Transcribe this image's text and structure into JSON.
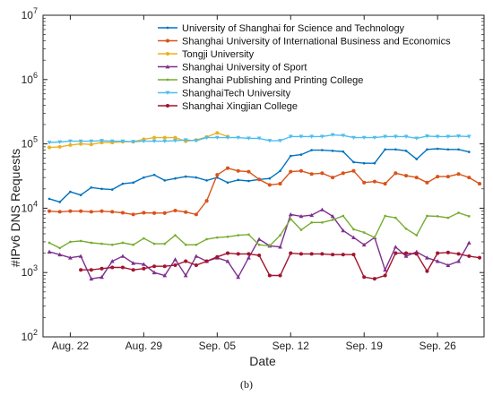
{
  "chart_data": {
    "type": "line",
    "xlabel": "Date",
    "ylabel": "#IPv6 DNS Requests",
    "caption": "(b)",
    "y_scale": "log",
    "ylim": [
      100,
      10000000
    ],
    "y_ticks": [
      {
        "value": 100,
        "base": "10",
        "exp": "2"
      },
      {
        "value": 1000,
        "base": "10",
        "exp": "3"
      },
      {
        "value": 10000,
        "base": "10",
        "exp": "4"
      },
      {
        "value": 100000,
        "base": "10",
        "exp": "5"
      },
      {
        "value": 1000000,
        "base": "10",
        "exp": "6"
      },
      {
        "value": 10000000,
        "base": "10",
        "exp": "7"
      }
    ],
    "x": [
      "Aug. 20",
      "Aug. 21",
      "Aug. 22",
      "Aug. 23",
      "Aug. 24",
      "Aug. 25",
      "Aug. 26",
      "Aug. 27",
      "Aug. 28",
      "Aug. 29",
      "Aug. 30",
      "Aug. 31",
      "Sep. 01",
      "Sep. 02",
      "Sep. 03",
      "Sep. 04",
      "Sep. 05",
      "Sep. 06",
      "Sep. 07",
      "Sep. 08",
      "Sep. 09",
      "Sep. 10",
      "Sep. 11",
      "Sep. 12",
      "Sep. 13",
      "Sep. 14",
      "Sep. 15",
      "Sep. 16",
      "Sep. 17",
      "Sep. 18",
      "Sep. 19",
      "Sep. 20",
      "Sep. 21",
      "Sep. 22",
      "Sep. 23",
      "Sep. 24",
      "Sep. 25",
      "Sep. 26",
      "Sep. 27",
      "Sep. 28",
      "Sep. 29",
      "Sep. 30"
    ],
    "x_ticks": [
      "Aug. 22",
      "Aug. 29",
      "Sep. 05",
      "Sep. 12",
      "Sep. 19",
      "Sep. 26"
    ],
    "grid": false,
    "legend_position": "top-right",
    "series": [
      {
        "name": "University of Shanghai for Science and Technology",
        "color": "#0072BD",
        "marker": "dot",
        "values": [
          14000,
          12500,
          18000,
          16000,
          21000,
          20000,
          19500,
          24000,
          25000,
          30000,
          33000,
          27000,
          29000,
          31000,
          30000,
          27000,
          30000,
          25000,
          27500,
          26500,
          28000,
          29000,
          38000,
          65000,
          68000,
          80000,
          80000,
          78000,
          76000,
          52000,
          50000,
          50000,
          82000,
          82000,
          78000,
          58000,
          82000,
          84000,
          82000,
          82000,
          75000,
          null
        ]
      },
      {
        "name": "Shanghai University of International Business and Economics",
        "color": "#D95319",
        "marker": "circle",
        "values": [
          9000,
          8800,
          9000,
          9000,
          8800,
          9000,
          8800,
          8500,
          8000,
          8500,
          8400,
          8400,
          9200,
          8700,
          8000,
          13000,
          33000,
          42000,
          38000,
          37000,
          28000,
          23000,
          24000,
          37000,
          38000,
          34000,
          35000,
          30000,
          35000,
          38000,
          25000,
          26000,
          24000,
          35000,
          32000,
          30000,
          25000,
          31000,
          31000,
          34000,
          30000,
          24000
        ]
      },
      {
        "name": "Tongji University",
        "color": "#EDB120",
        "marker": "circle",
        "values": [
          88000,
          90000,
          96000,
          100000,
          98000,
          105000,
          105000,
          108000,
          108000,
          118000,
          125000,
          125000,
          125000,
          110000,
          115000,
          128000,
          148000,
          130000,
          null,
          null,
          null,
          null,
          null,
          null,
          null,
          null,
          null,
          null,
          null,
          null,
          null,
          null,
          null,
          null,
          null,
          null,
          null,
          null,
          null,
          null,
          null,
          null
        ]
      },
      {
        "name": "Shanghai University of Sport",
        "color": "#7E2F8E",
        "marker": "triangle",
        "values": [
          2100,
          1900,
          1700,
          1800,
          800,
          850,
          1500,
          1800,
          1400,
          1350,
          1000,
          900,
          1600,
          900,
          1800,
          1500,
          1700,
          1500,
          850,
          1700,
          3300,
          2600,
          2500,
          8000,
          7500,
          7800,
          9500,
          7500,
          4500,
          3500,
          2700,
          3500,
          1100,
          2500,
          1800,
          2100,
          1700,
          1500,
          1300,
          1500,
          2900,
          null
        ]
      },
      {
        "name": "Shanghai Publishing and Printing College",
        "color": "#77AC30",
        "marker": "dot",
        "values": [
          2900,
          2400,
          3000,
          3100,
          2900,
          2800,
          2700,
          2900,
          2700,
          3400,
          2800,
          2800,
          3800,
          2700,
          2700,
          3300,
          3500,
          3600,
          3800,
          3900,
          2700,
          2600,
          3800,
          6800,
          4600,
          6000,
          6000,
          6600,
          7600,
          4700,
          4200,
          3500,
          7600,
          7100,
          4800,
          3800,
          7600,
          7500,
          7100,
          8500,
          7500,
          null
        ]
      },
      {
        "name": "ShanghaiTech University",
        "color": "#4DBEEE",
        "marker": "triangle-down",
        "values": [
          105000,
          107000,
          110000,
          110000,
          110000,
          112000,
          110000,
          110000,
          108000,
          110000,
          110000,
          110000,
          112000,
          115000,
          112000,
          125000,
          125000,
          125000,
          125000,
          122000,
          122000,
          112000,
          112000,
          130000,
          130000,
          130000,
          130000,
          138000,
          135000,
          125000,
          125000,
          125000,
          130000,
          130000,
          130000,
          122000,
          132000,
          130000,
          130000,
          132000,
          130000,
          null
        ]
      },
      {
        "name": "Shanghai Xingjian College",
        "color": "#A2142F",
        "marker": "circle",
        "values": [
          null,
          null,
          null,
          1100,
          1100,
          1150,
          1200,
          1200,
          1100,
          1150,
          1250,
          1250,
          1300,
          1500,
          1300,
          1500,
          1750,
          2000,
          1950,
          1950,
          1850,
          900,
          900,
          2000,
          1950,
          1950,
          1950,
          1900,
          1900,
          1900,
          850,
          800,
          900,
          2000,
          2000,
          1950,
          1050,
          2000,
          2050,
          1950,
          1800,
          1700
        ]
      }
    ]
  }
}
